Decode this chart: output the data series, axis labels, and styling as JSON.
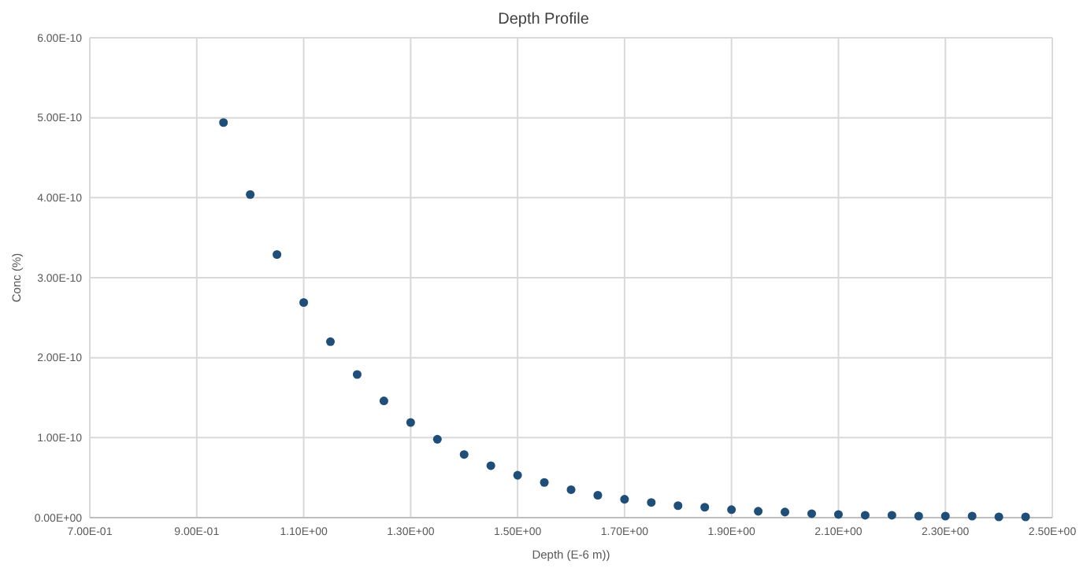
{
  "chart_data": {
    "type": "scatter",
    "title": "Depth Profile",
    "xlabel": "Depth (E-6 m))",
    "ylabel": "Conc (%)",
    "x": [
      0.95,
      1.0,
      1.05,
      1.1,
      1.15,
      1.2,
      1.25,
      1.3,
      1.35,
      1.4,
      1.45,
      1.5,
      1.55,
      1.6,
      1.65,
      1.7,
      1.75,
      1.8,
      1.85,
      1.9,
      1.95,
      2.0,
      2.05,
      2.1,
      2.15,
      2.2,
      2.25,
      2.3,
      2.35,
      2.4,
      2.45
    ],
    "series": [
      {
        "color": "#1f4e79",
        "values": [
          4.94e-10,
          4.04e-10,
          3.29e-10,
          2.69e-10,
          2.2e-10,
          1.79e-10,
          1.46e-10,
          1.19e-10,
          9.8e-11,
          7.9e-11,
          6.5e-11,
          5.3e-11,
          4.4e-11,
          3.5e-11,
          2.8e-11,
          2.3e-11,
          1.9e-11,
          1.5e-11,
          1.3e-11,
          1e-11,
          8e-12,
          7e-12,
          5e-12,
          4e-12,
          3e-12,
          3e-12,
          2e-12,
          2e-12,
          2e-12,
          1e-12,
          1e-12
        ]
      }
    ],
    "xlim": [
      0.7,
      2.5
    ],
    "xticks": [
      {
        "value": 0.7,
        "label": "7.00E-01"
      },
      {
        "value": 0.9,
        "label": "9.00E-01"
      },
      {
        "value": 1.1,
        "label": "1.10E+00"
      },
      {
        "value": 1.3,
        "label": "1.30E+00"
      },
      {
        "value": 1.5,
        "label": "1.50E+00"
      },
      {
        "value": 1.7,
        "label": "1.70E+00"
      },
      {
        "value": 1.9,
        "label": "1.90E+00"
      },
      {
        "value": 2.1,
        "label": "2.10E+00"
      },
      {
        "value": 2.3,
        "label": "2.30E+00"
      },
      {
        "value": 2.5,
        "label": "2.50E+00"
      }
    ],
    "ylim": [
      0,
      6e-10
    ],
    "yticks": [
      {
        "value": 0,
        "label": "0.00E+00"
      },
      {
        "value": 1e-10,
        "label": "1.00E-10"
      },
      {
        "value": 2e-10,
        "label": "2.00E-10"
      },
      {
        "value": 3e-10,
        "label": "3.00E-10"
      },
      {
        "value": 4e-10,
        "label": "4.00E-10"
      },
      {
        "value": 5e-10,
        "label": "5.00E-10"
      },
      {
        "value": 6e-10,
        "label": "6.00E-10"
      }
    ],
    "grid": true,
    "marker": "circle"
  }
}
